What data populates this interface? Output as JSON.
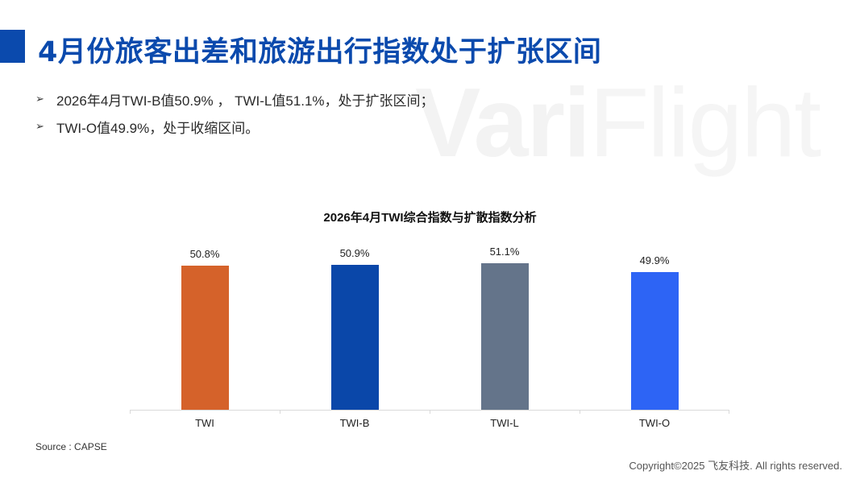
{
  "header": {
    "title": "4月份旅客出差和旅游出行指数处于扩张区间",
    "accent_color": "#0b4aad"
  },
  "watermark": {
    "bold_part": "Vari",
    "light_part": "Flight"
  },
  "bullets": [
    {
      "icon": "arrow-bullet-icon",
      "text": "2026年4月TWI-B值50.9% ， TWI-L值51.1%，处于扩张区间；"
    },
    {
      "icon": "arrow-bullet-icon",
      "text": "TWI-O值49.9%，处于收缩区间。"
    }
  ],
  "chart_data": {
    "type": "bar",
    "title": "2026年4月TWI综合指数与扩散指数分析",
    "categories": [
      "TWI",
      "TWI-B",
      "TWI-L",
      "TWI-O"
    ],
    "values": [
      50.8,
      50.9,
      51.1,
      49.9
    ],
    "value_labels": [
      "50.8%",
      "50.9%",
      "51.1%",
      "49.9%"
    ],
    "colors": [
      "#d5622a",
      "#0a47a9",
      "#64748a",
      "#2d64f5"
    ],
    "xlabel": "",
    "ylabel": "",
    "unit": "%",
    "ylim": [
      31.3,
      52
    ],
    "grid": false,
    "legend": "none"
  },
  "footer": {
    "source": "Source : CAPSE",
    "copyright": "Copyright©2025 飞友科技. All rights reserved."
  }
}
